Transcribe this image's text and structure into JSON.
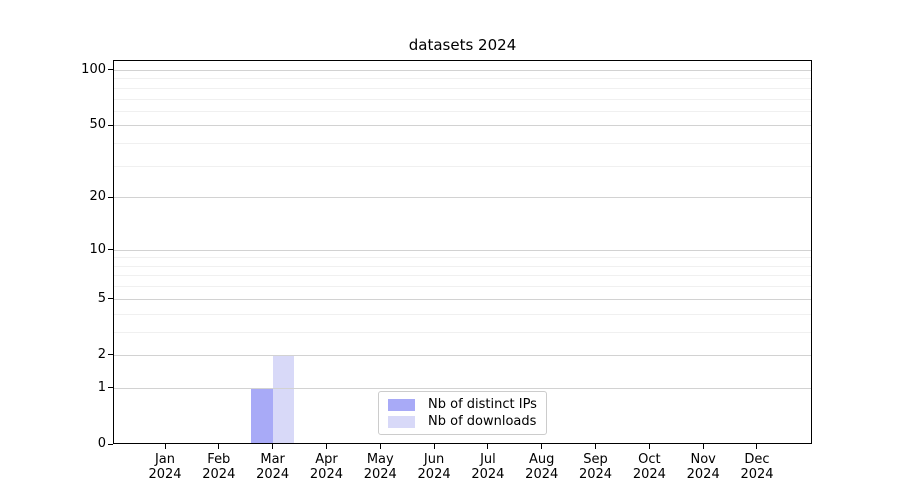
{
  "chart_data": {
    "type": "bar",
    "title": "datasets 2024",
    "x_axis": {
      "months": [
        "Jan",
        "Feb",
        "Mar",
        "Apr",
        "May",
        "Jun",
        "Jul",
        "Aug",
        "Sep",
        "Oct",
        "Nov",
        "Dec"
      ],
      "year": "2024"
    },
    "y_axis": {
      "scale": "log10(1+v)",
      "major_ticks": [
        0,
        1,
        2,
        5,
        10,
        20,
        50,
        100
      ],
      "minor_ticks": [
        3,
        4,
        6,
        7,
        8,
        9,
        30,
        40,
        60,
        70,
        80,
        90
      ],
      "range": [
        0,
        113
      ]
    },
    "series": [
      {
        "name": "Nb of distinct IPs",
        "color": "#a8aaf7",
        "values": [
          0,
          0,
          1,
          0,
          0,
          0,
          0,
          0,
          0,
          0,
          0,
          0
        ]
      },
      {
        "name": "Nb of downloads",
        "color": "#d8d9f8",
        "values": [
          0,
          0,
          2,
          0,
          0,
          0,
          0,
          0,
          0,
          0,
          0,
          0
        ]
      }
    ],
    "legend": {
      "entries": [
        "Nb of distinct IPs",
        "Nb of downloads"
      ],
      "position": "lower center"
    },
    "grid": true
  }
}
